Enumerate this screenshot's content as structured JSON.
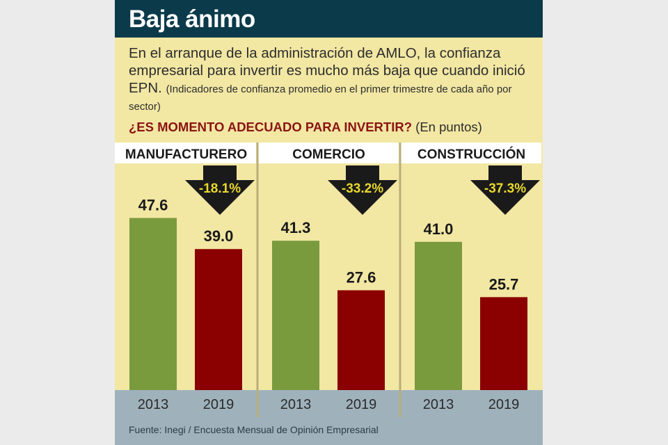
{
  "title": "Baja ánimo",
  "subtitle": "En el arranque de la administración de AMLO, la confianza empresarial para invertir es mucho más baja que cuando inició EPN.",
  "subtitle_note": "(Indicadores de confianza promedio en el primer trimestre de cada año por sector)",
  "question": "¿ES MOMENTO ADECUADO PARA INVERTIR?",
  "units": "(En puntos)",
  "source": "Fuente: Inegi / Encuesta Mensual de Opinión Empresarial",
  "colors": {
    "title_bar": "#0b3a4a",
    "background": "#f2e7a3",
    "bar_2013": "#7a9a3e",
    "bar_2019": "#8b0000",
    "change_text": "#e8d82c",
    "footer": "#9fb2bc"
  },
  "chart_data": {
    "type": "bar",
    "unit": "puntos",
    "ylim": [
      0,
      60
    ],
    "grid": false,
    "groups": [
      {
        "sector": "MANUFACTURERO",
        "change": "-18.1%",
        "bars": [
          {
            "year": "2013",
            "value": 47.6,
            "label": "47.6"
          },
          {
            "year": "2019",
            "value": 39.0,
            "label": "39.0"
          }
        ]
      },
      {
        "sector": "COMERCIO",
        "change": "-33.2%",
        "bars": [
          {
            "year": "2013",
            "value": 41.3,
            "label": "41.3"
          },
          {
            "year": "2019",
            "value": 27.6,
            "label": "27.6"
          }
        ]
      },
      {
        "sector": "CONSTRUCCIÓN",
        "change": "-37.3%",
        "bars": [
          {
            "year": "2013",
            "value": 41.0,
            "label": "41.0"
          },
          {
            "year": "2019",
            "value": 25.7,
            "label": "25.7"
          }
        ]
      }
    ]
  }
}
